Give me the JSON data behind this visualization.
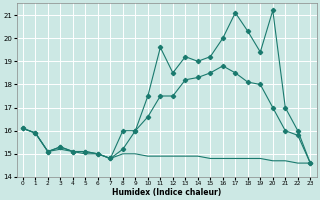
{
  "xlabel": "Humidex (Indice chaleur)",
  "xlim": [
    -0.5,
    23.5
  ],
  "ylim": [
    14,
    21.5
  ],
  "yticks": [
    14,
    15,
    16,
    17,
    18,
    19,
    20,
    21
  ],
  "xticks": [
    0,
    1,
    2,
    3,
    4,
    5,
    6,
    7,
    8,
    9,
    10,
    11,
    12,
    13,
    14,
    15,
    16,
    17,
    18,
    19,
    20,
    21,
    22,
    23
  ],
  "bg_color": "#cce8e4",
  "grid_color": "#ffffff",
  "line_color": "#1a7a6e",
  "line1_x": [
    0,
    1,
    2,
    3,
    4,
    5,
    6,
    7,
    8,
    9,
    10,
    11,
    12,
    13,
    14,
    15,
    16,
    17,
    18,
    19,
    20,
    21,
    22,
    23
  ],
  "line1_y": [
    16.1,
    15.9,
    15.1,
    15.2,
    15.1,
    15.0,
    15.0,
    14.8,
    15.0,
    15.0,
    14.9,
    14.9,
    14.9,
    14.9,
    14.9,
    14.8,
    14.8,
    14.8,
    14.8,
    14.8,
    14.7,
    14.7,
    14.6,
    14.6
  ],
  "line2_x": [
    0,
    1,
    2,
    3,
    4,
    5,
    6,
    7,
    8,
    9,
    10,
    11,
    12,
    13,
    14,
    15,
    16,
    17,
    18,
    19,
    20,
    21,
    22,
    23
  ],
  "line2_y": [
    16.1,
    15.9,
    15.1,
    15.3,
    15.1,
    15.1,
    15.0,
    14.8,
    15.2,
    16.0,
    16.6,
    17.5,
    17.5,
    18.2,
    18.3,
    18.5,
    18.8,
    18.5,
    18.1,
    18.0,
    17.0,
    16.0,
    15.8,
    14.6
  ],
  "line3_x": [
    0,
    1,
    2,
    3,
    4,
    5,
    6,
    7,
    8,
    9,
    10,
    11,
    12,
    13,
    14,
    15,
    16,
    17,
    18,
    19,
    20,
    21,
    22,
    23
  ],
  "line3_y": [
    16.1,
    15.9,
    15.1,
    15.3,
    15.1,
    15.1,
    15.0,
    14.8,
    16.0,
    16.0,
    17.5,
    19.6,
    18.5,
    19.2,
    19.0,
    19.2,
    20.0,
    21.1,
    20.3,
    19.4,
    21.2,
    17.0,
    16.0,
    14.6
  ]
}
